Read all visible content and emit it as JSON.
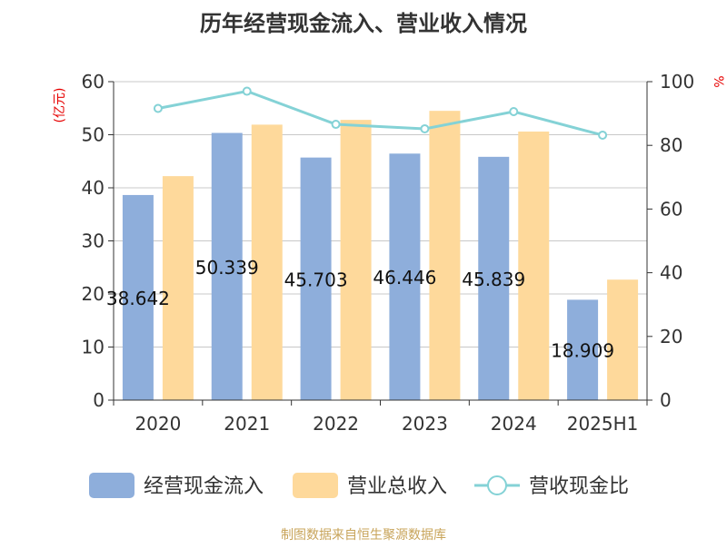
{
  "chart_data": {
    "type": "bar",
    "title": "历年经营现金流入、营业收入情况",
    "left_axis_unit": "(亿元)",
    "right_axis_unit": "%",
    "categories": [
      "2020",
      "2021",
      "2022",
      "2023",
      "2024",
      "2025H1"
    ],
    "left_ylim": [
      0,
      60
    ],
    "left_ticks": [
      0,
      10,
      20,
      30,
      40,
      50,
      60
    ],
    "right_ylim": [
      0,
      100
    ],
    "right_ticks": [
      0,
      20,
      40,
      60,
      80,
      100
    ],
    "grid": true,
    "legend_position": "bottom",
    "series": [
      {
        "name": "经营现金流入",
        "type": "bar",
        "axis": "left",
        "color": "#8eaedb",
        "values": [
          38.642,
          50.339,
          45.703,
          46.446,
          45.839,
          18.909
        ],
        "labels": [
          "38.642",
          "50.339",
          "45.703",
          "46.446",
          "45.839",
          "18.909"
        ]
      },
      {
        "name": "营业总收入",
        "type": "bar",
        "axis": "left",
        "color": "#fed99b",
        "values": [
          42.2,
          51.9,
          52.8,
          54.5,
          50.6,
          22.7
        ]
      },
      {
        "name": "营收现金比",
        "type": "line",
        "axis": "right",
        "color": "#84d2d6",
        "values": [
          91.6,
          97.0,
          86.6,
          85.2,
          90.6,
          83.2
        ]
      }
    ]
  },
  "footer": {
    "source": "制图数据来自恒生聚源数据库"
  }
}
